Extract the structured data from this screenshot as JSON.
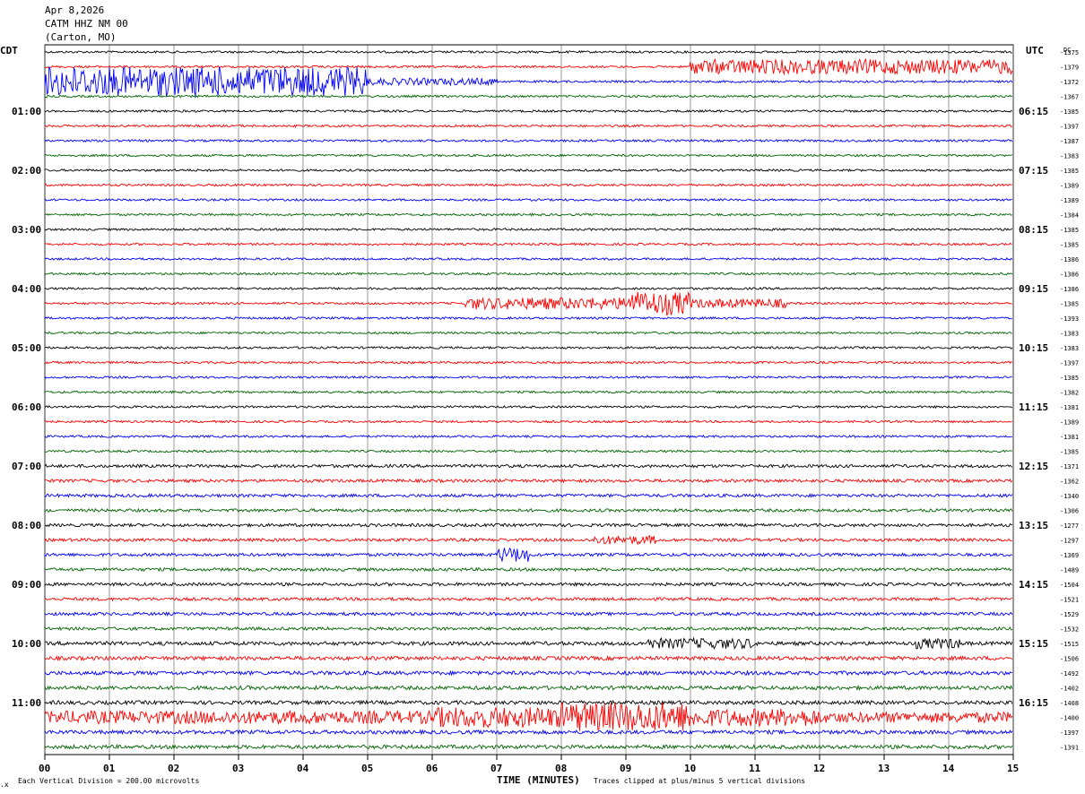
{
  "header": {
    "date": "Apr 8,2026",
    "station": "CATM HHZ NM 00",
    "location": "(Carton, MO)"
  },
  "left_tz": "CDT",
  "right_tz": "UTC",
  "dc_label": "DC",
  "footer": {
    "scale": "Each Vertical Division =  200.00 microvolts",
    "clip": "Traces clipped at plus/minus 5 vertical divisions",
    "corner_mark": ".x"
  },
  "chart_data": {
    "type": "line",
    "title": "",
    "xlabel": "TIME (MINUTES)",
    "xlim": [
      0,
      15
    ],
    "x_ticks": [
      "00",
      "01",
      "02",
      "03",
      "04",
      "05",
      "06",
      "07",
      "08",
      "09",
      "10",
      "11",
      "12",
      "13",
      "14",
      "15"
    ],
    "grid": "vertical lines at each minute",
    "trace_colors": [
      "#000000",
      "#ff0000",
      "#0000ff",
      "#006400"
    ],
    "rows": 48,
    "row_minutes": 15,
    "hour_labels_left": [
      "01:00",
      "02:00",
      "03:00",
      "04:00",
      "05:00",
      "06:00",
      "07:00",
      "08:00",
      "09:00",
      "10:00",
      "11:00"
    ],
    "hour_labels_right": [
      "06:15",
      "07:15",
      "08:15",
      "09:15",
      "10:15",
      "11:15",
      "12:15",
      "13:15",
      "14:15",
      "15:15",
      "16:15"
    ],
    "dc_offsets": [
      "-1375",
      "-1379",
      "-1372",
      "-1367",
      "-1385",
      "-1397",
      "-1387",
      "-1383",
      "-1385",
      "-1389",
      "-1389",
      "-1384",
      "-1385",
      "-1385",
      "-1386",
      "-1386",
      "-1386",
      "-1385",
      "-1393",
      "-1383",
      "-1383",
      "-1397",
      "-1385",
      "-1382",
      "-1381",
      "-1389",
      "-1381",
      "-1385",
      "-1371",
      "-1362",
      "-1340",
      "-1306",
      "-1277",
      "-1297",
      "-1369",
      "-1489",
      "-1504",
      "-1521",
      "-1529",
      "-1532",
      "-1515",
      "-1506",
      "-1492",
      "-1402",
      "-1408",
      "-1400",
      "-1397",
      "-1391"
    ],
    "events": [
      {
        "row": 1,
        "start_min": 10.0,
        "end_min": 15.0,
        "amp_div": 2.5
      },
      {
        "row": 2,
        "start_min": 0.0,
        "end_min": 5.0,
        "amp_div": 5.0
      },
      {
        "row": 2,
        "start_min": 5.0,
        "end_min": 7.0,
        "amp_div": 1.2
      },
      {
        "row": 17,
        "start_min": 6.5,
        "end_min": 9.0,
        "amp_div": 2.0
      },
      {
        "row": 17,
        "start_min": 9.0,
        "end_min": 10.0,
        "amp_div": 4.0
      },
      {
        "row": 17,
        "start_min": 10.0,
        "end_min": 11.5,
        "amp_div": 1.5
      },
      {
        "row": 33,
        "start_min": 8.5,
        "end_min": 9.5,
        "amp_div": 1.5
      },
      {
        "row": 34,
        "start_min": 7.0,
        "end_min": 7.5,
        "amp_div": 2.5
      },
      {
        "row": 40,
        "start_min": 9.3,
        "end_min": 11.0,
        "amp_div": 1.8
      },
      {
        "row": 40,
        "start_min": 13.5,
        "end_min": 14.2,
        "amp_div": 1.8
      },
      {
        "row": 45,
        "start_min": 0.0,
        "end_min": 6.0,
        "amp_div": 2.2
      },
      {
        "row": 45,
        "start_min": 6.0,
        "end_min": 8.0,
        "amp_div": 3.5
      },
      {
        "row": 45,
        "start_min": 8.0,
        "end_min": 10.0,
        "amp_div": 5.0
      },
      {
        "row": 45,
        "start_min": 10.0,
        "end_min": 12.0,
        "amp_div": 3.0
      },
      {
        "row": 45,
        "start_min": 12.0,
        "end_min": 15.0,
        "amp_div": 1.8
      }
    ]
  }
}
